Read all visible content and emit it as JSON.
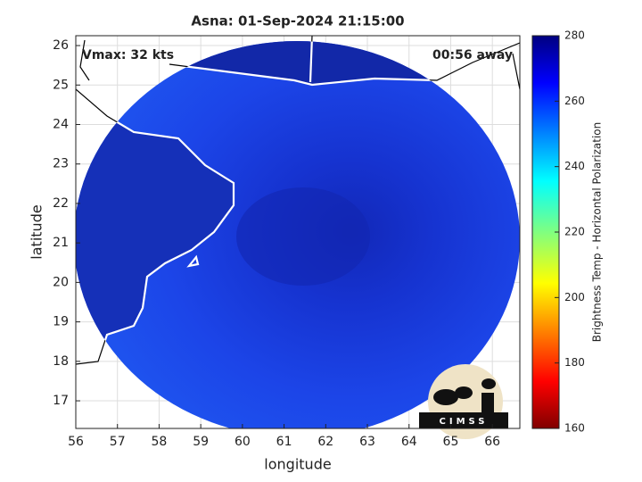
{
  "chart_data": {
    "type": "map",
    "title": "Asna: 01-Sep-2024 21:15:00",
    "xlabel": "longitude",
    "ylabel": "latitude",
    "annotations": [
      "Vmax: 32 kts",
      "00:56 away"
    ],
    "xlim": [
      56,
      66.66
    ],
    "ylim": [
      16.3,
      26.25
    ],
    "xticks": [
      56,
      57,
      58,
      59,
      60,
      61,
      62,
      63,
      64,
      65,
      66
    ],
    "yticks": [
      17,
      18,
      19,
      20,
      21,
      22,
      23,
      24,
      25,
      26
    ],
    "grid": true,
    "colorbar": {
      "label": "Brightness Temp - Horizontal Polarization",
      "lim": [
        160,
        280
      ],
      "ticks": [
        160,
        180,
        200,
        220,
        240,
        260,
        280
      ]
    },
    "logo": "CIMSS"
  }
}
